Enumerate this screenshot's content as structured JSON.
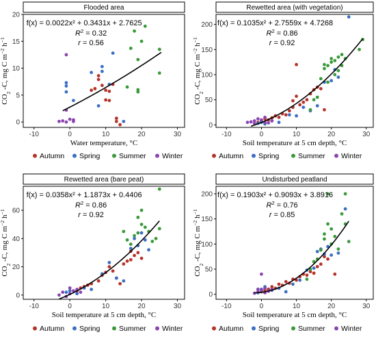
{
  "legend": {
    "labels": [
      "Autumn",
      "Spring",
      "Summer",
      "Winter"
    ]
  },
  "colors": {
    "Autumn": "#b5332a",
    "Spring": "#3a6fc4",
    "Summer": "#3a9a3a",
    "Winter": "#8a45b0",
    "fit": "#000000"
  },
  "chart_data": [
    {
      "type": "scatter",
      "title": "Flooded area",
      "xlabel": "Water temperature, °C",
      "ylabel": "CO₂ -C, mg C m⁻² h⁻¹",
      "xlim": [
        -13,
        32
      ],
      "ylim": [
        -1,
        20
      ],
      "xticks": [
        -10,
        0,
        10,
        20,
        30
      ],
      "yticks": [
        0,
        5,
        10,
        15,
        20
      ],
      "grid": false,
      "fit_text": "f(x) = 0.0022x² + 0.3431x + 2.7625",
      "r2_text": "R² = 0.32",
      "r_text": "r = 0.56",
      "fit": {
        "a": 0.0022,
        "b": 0.3431,
        "c": 2.7625,
        "x_range": [
          -2,
          25.5
        ]
      },
      "series": [
        {
          "name": "Autumn",
          "points": [
            [
              6,
              5.9
            ],
            [
              7,
              6.2
            ],
            [
              8,
              7.9
            ],
            [
              8,
              8.6
            ],
            [
              9,
              6.8
            ],
            [
              10,
              5.9
            ],
            [
              10,
              4.1
            ],
            [
              11,
              4.0
            ],
            [
              11,
              5.7
            ],
            [
              12,
              7.0
            ],
            [
              13,
              0.7
            ],
            [
              13,
              0.1
            ],
            [
              14,
              -0.5
            ]
          ]
        },
        {
          "name": "Spring",
          "points": [
            [
              -1,
              7.3
            ],
            [
              -1,
              6.7
            ],
            [
              -1,
              5.6
            ],
            [
              1,
              4.0
            ],
            [
              6,
              9.2
            ],
            [
              8,
              3.0
            ],
            [
              9,
              10.3
            ],
            [
              9,
              9.4
            ],
            [
              11,
              7.0
            ],
            [
              12,
              12.8
            ],
            [
              15,
              0.1
            ]
          ]
        },
        {
          "name": "Summer",
          "points": [
            [
              16,
              6.5
            ],
            [
              17,
              13.7
            ],
            [
              18,
              16.9
            ],
            [
              19,
              11.6
            ],
            [
              19,
              6.0
            ],
            [
              19,
              5.6
            ],
            [
              20,
              15.0
            ],
            [
              21,
              17.8
            ],
            [
              25,
              9.1
            ],
            [
              25,
              13.5
            ]
          ]
        },
        {
          "name": "Winter",
          "points": [
            [
              -3,
              0.1
            ],
            [
              -2,
              0.2
            ],
            [
              -1,
              0.0
            ],
            [
              -1,
              2.2
            ],
            [
              -1,
              12.5
            ],
            [
              0,
              0.5
            ],
            [
              1,
              0.4
            ],
            [
              1,
              0.1
            ]
          ]
        }
      ]
    },
    {
      "type": "scatter",
      "title": "Rewetted area (with vegetation)",
      "xlabel": "Soil temperature at 5 cm depth, °C",
      "ylabel": "CO₂ -C, mg C m⁻² h⁻¹",
      "xlim": [
        -13,
        32
      ],
      "ylim": [
        -5,
        220
      ],
      "xticks": [
        -10,
        0,
        10,
        20,
        30
      ],
      "yticks": [
        0,
        50,
        100,
        150,
        200
      ],
      "grid": false,
      "fit_text": "f(x) = 0.1035x² + 2.7559x + 4.7268",
      "r2_text": "R² = 0.86",
      "r_text": "r = 0.92",
      "fit": {
        "a": 0.1035,
        "b": 2.7559,
        "c": 4.7268,
        "x_range": [
          -3,
          29
        ]
      },
      "series": [
        {
          "name": "Autumn",
          "points": [
            [
              -1,
              5
            ],
            [
              0,
              8
            ],
            [
              1,
              12
            ],
            [
              2,
              10
            ],
            [
              3,
              14
            ],
            [
              4,
              18
            ],
            [
              5,
              15
            ],
            [
              6,
              22
            ],
            [
              7,
              20
            ],
            [
              8,
              28
            ],
            [
              9,
              35
            ],
            [
              9,
              48
            ],
            [
              10,
              57
            ],
            [
              10,
              120
            ],
            [
              11,
              40
            ],
            [
              12,
              45
            ],
            [
              13,
              50
            ],
            [
              14,
              62
            ],
            [
              15,
              70
            ],
            [
              16,
              75
            ],
            [
              17,
              72
            ],
            [
              18,
              30
            ]
          ]
        },
        {
          "name": "Spring",
          "points": [
            [
              -1,
              3
            ],
            [
              0,
              5
            ],
            [
              1,
              2
            ],
            [
              3,
              8
            ],
            [
              5,
              5
            ],
            [
              8,
              20
            ],
            [
              10,
              18
            ],
            [
              12,
              35
            ],
            [
              14,
              28
            ],
            [
              16,
              38
            ],
            [
              18,
              85
            ],
            [
              20,
              88
            ],
            [
              21,
              110
            ],
            [
              22,
              95
            ],
            [
              25,
              215
            ]
          ]
        },
        {
          "name": "Summer",
          "points": [
            [
              14,
              30
            ],
            [
              15,
              50
            ],
            [
              16,
              55
            ],
            [
              17,
              92
            ],
            [
              18,
              112
            ],
            [
              18,
              120
            ],
            [
              19,
              85
            ],
            [
              19,
              118
            ],
            [
              20,
              125
            ],
            [
              20,
              132
            ],
            [
              21,
              100
            ],
            [
              21,
              128
            ],
            [
              22,
              108
            ],
            [
              22,
              135
            ],
            [
              23,
              118
            ],
            [
              23,
              140
            ],
            [
              24,
              132
            ],
            [
              29,
              170
            ],
            [
              28,
              150
            ]
          ]
        },
        {
          "name": "Winter",
          "points": [
            [
              -4,
              5
            ],
            [
              -3,
              6
            ],
            [
              -2,
              8
            ],
            [
              -2,
              3
            ],
            [
              -1,
              12
            ],
            [
              0,
              10
            ],
            [
              1,
              15
            ],
            [
              1,
              5
            ],
            [
              2,
              4
            ],
            [
              3,
              8
            ]
          ]
        }
      ]
    },
    {
      "type": "scatter",
      "title": "Rewetted area (bare peat)",
      "xlabel": "Soil temperature at 5 cm depth, °C",
      "ylabel": "CO₂ -C, mg C m⁻² h⁻¹",
      "xlim": [
        -13,
        32
      ],
      "ylim": [
        -3,
        77
      ],
      "xticks": [
        -10,
        0,
        10,
        20,
        30
      ],
      "yticks": [
        0,
        20,
        40,
        60
      ],
      "grid": false,
      "fit_text": "f(x) = 0.0358x² + 1.1873x + 0.4406",
      "r2_text": "R² = 0.86",
      "r_text": "r = 0.92",
      "fit": {
        "a": 0.0358,
        "b": 1.1873,
        "c": 0.4406,
        "x_range": [
          -3,
          25
        ]
      },
      "series": [
        {
          "name": "Autumn",
          "points": [
            [
              2,
              3
            ],
            [
              3,
              5
            ],
            [
              4,
              6
            ],
            [
              5,
              7
            ],
            [
              6,
              8
            ],
            [
              8,
              10
            ],
            [
              9,
              14
            ],
            [
              10,
              16
            ],
            [
              11,
              20
            ],
            [
              12,
              17
            ],
            [
              13,
              12
            ],
            [
              14,
              8
            ],
            [
              15,
              22
            ],
            [
              16,
              24
            ],
            [
              17,
              25
            ],
            [
              18,
              28
            ],
            [
              19,
              30
            ],
            [
              20,
              26
            ],
            [
              17,
              31
            ]
          ]
        },
        {
          "name": "Spring",
          "points": [
            [
              -1,
              2
            ],
            [
              0,
              3
            ],
            [
              2,
              1
            ],
            [
              4,
              5
            ],
            [
              6,
              4
            ],
            [
              9,
              15
            ],
            [
              11,
              23
            ],
            [
              13,
              12
            ],
            [
              15,
              10
            ],
            [
              17,
              33
            ],
            [
              18,
              40
            ],
            [
              19,
              35
            ],
            [
              20,
              44
            ],
            [
              21,
              39
            ],
            [
              22,
              32
            ]
          ]
        },
        {
          "name": "Summer",
          "points": [
            [
              15,
              45
            ],
            [
              16,
              39
            ],
            [
              17,
              36
            ],
            [
              18,
              42
            ],
            [
              19,
              55
            ],
            [
              20,
              60
            ],
            [
              20,
              50
            ],
            [
              21,
              48
            ],
            [
              22,
              45
            ],
            [
              23,
              38
            ],
            [
              24,
              40
            ],
            [
              25,
              47
            ],
            [
              25,
              75
            ],
            [
              19,
              44
            ]
          ]
        },
        {
          "name": "Winter",
          "points": [
            [
              -3,
              0
            ],
            [
              -2,
              2
            ],
            [
              -1,
              -1
            ],
            [
              0,
              5
            ],
            [
              0,
              1
            ],
            [
              1,
              3
            ],
            [
              2,
              4
            ],
            [
              3,
              2
            ]
          ]
        }
      ]
    },
    {
      "type": "scatter",
      "title": "Undisturbed peatland",
      "xlabel": "Soil temperature at 5 cm depth, °C",
      "ylabel": "CO₂ -C, mg C m⁻² h⁻¹",
      "xlim": [
        -13,
        32
      ],
      "ylim": [
        -10,
        215
      ],
      "xticks": [
        -10,
        0,
        10,
        20,
        30
      ],
      "yticks": [
        0,
        50,
        100,
        150,
        200
      ],
      "grid": false,
      "fit_text": "f(x) = 0.1903x² + 0.9093x + 3.8916",
      "r2_text": "R² = 0.76",
      "r_text": "r = 0.85",
      "fit": {
        "a": 0.1903,
        "b": 0.9093,
        "c": 3.8916,
        "x_range": [
          -2,
          25
        ]
      },
      "series": [
        {
          "name": "Autumn",
          "points": [
            [
              0,
              5
            ],
            [
              1,
              8
            ],
            [
              2,
              10
            ],
            [
              3,
              15
            ],
            [
              4,
              12
            ],
            [
              5,
              20
            ],
            [
              6,
              18
            ],
            [
              7,
              25
            ],
            [
              8,
              22
            ],
            [
              9,
              30
            ],
            [
              10,
              28
            ],
            [
              11,
              35
            ],
            [
              12,
              40
            ],
            [
              13,
              38
            ],
            [
              14,
              45
            ],
            [
              15,
              42
            ],
            [
              16,
              55
            ],
            [
              17,
              60
            ],
            [
              18,
              75
            ],
            [
              19,
              70
            ],
            [
              21,
              40
            ]
          ]
        },
        {
          "name": "Spring",
          "points": [
            [
              -1,
              3
            ],
            [
              0,
              10
            ],
            [
              1,
              15
            ],
            [
              3,
              8
            ],
            [
              5,
              12
            ],
            [
              7,
              5
            ],
            [
              9,
              20
            ],
            [
              11,
              28
            ],
            [
              13,
              48
            ],
            [
              15,
              52
            ],
            [
              16,
              85
            ],
            [
              17,
              90
            ],
            [
              18,
              80
            ],
            [
              19,
              95
            ],
            [
              20,
              78
            ],
            [
              22,
              82
            ],
            [
              24,
              170
            ]
          ]
        },
        {
          "name": "Summer",
          "points": [
            [
              13,
              30
            ],
            [
              14,
              50
            ],
            [
              15,
              65
            ],
            [
              16,
              70
            ],
            [
              17,
              88
            ],
            [
              18,
              110
            ],
            [
              18,
              120
            ],
            [
              19,
              200
            ],
            [
              19,
              140
            ],
            [
              20,
              100
            ],
            [
              20,
              130
            ],
            [
              21,
              115
            ],
            [
              22,
              90
            ],
            [
              23,
              160
            ],
            [
              24,
              200
            ],
            [
              24,
              140
            ],
            [
              25,
              105
            ]
          ]
        },
        {
          "name": "Winter",
          "points": [
            [
              -2,
              2
            ],
            [
              -1,
              5
            ],
            [
              -1,
              10
            ],
            [
              0,
              40
            ],
            [
              0,
              8
            ],
            [
              1,
              12
            ],
            [
              1,
              3
            ],
            [
              2,
              6
            ],
            [
              3,
              10
            ]
          ]
        }
      ]
    }
  ]
}
